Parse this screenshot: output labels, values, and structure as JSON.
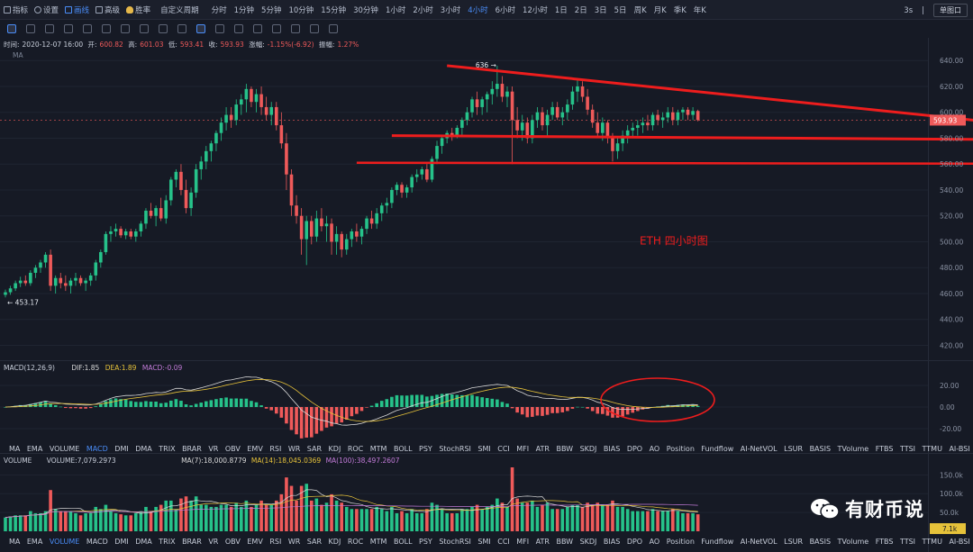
{
  "topbar": {
    "items": [
      {
        "name": "indicators-button",
        "label": "指标",
        "icon": "indicator-icon",
        "active": false
      },
      {
        "name": "settings-button",
        "label": "设置",
        "icon": "gear-icon",
        "active": false
      },
      {
        "name": "draw-button",
        "label": "画线",
        "icon": "pencil-icon",
        "active": true
      },
      {
        "name": "advanced-button",
        "label": "高级",
        "icon": "grid-icon",
        "active": false
      },
      {
        "name": "win-button",
        "label": "胜率",
        "icon": "bulb-icon",
        "active": false
      }
    ],
    "custom_period": "自定义周期",
    "periods": [
      "分时",
      "1分钟",
      "5分钟",
      "10分钟",
      "15分钟",
      "30分钟",
      "1小时",
      "2小时",
      "3小时",
      "4小时",
      "6小时",
      "12小时",
      "1日",
      "2日",
      "3日",
      "5日",
      "周K",
      "月K",
      "季K",
      "年K"
    ],
    "selected_period": "4小时",
    "refresh": "3s",
    "mode": "单图口"
  },
  "info": {
    "time_label": "时间:",
    "time": "2020-12-07 16:00",
    "open_label": "开:",
    "open": "600.82",
    "high_label": "高:",
    "high": "601.03",
    "low_label": "低:",
    "low": "593.41",
    "close_label": "收:",
    "close": "593.93",
    "chg_label": "涨幅:",
    "chg": "-1.15%(-6.92)",
    "amp_label": "振幅:",
    "amp": "1.27%"
  },
  "ma_label": "MA",
  "macd_header": {
    "name": "MACD(12,26,9)",
    "dif": "DIF:1.85",
    "dea": "DEA:1.89",
    "macd": "MACD:-0.09"
  },
  "vol_header": {
    "name": "VOLUME",
    "volume": "VOLUME:7,079.2973",
    "ma7": "MA(7):18,000.8779",
    "ma14": "MA(14):18,045.0369",
    "ma100": "MA(100):38,497.2607"
  },
  "indicator_tabs": [
    "MA",
    "EMA",
    "VOLUME",
    "MACD",
    "DMI",
    "DMA",
    "TRIX",
    "BRAR",
    "VR",
    "OBV",
    "EMV",
    "RSI",
    "WR",
    "SAR",
    "KDJ",
    "ROC",
    "MTM",
    "BOLL",
    "PSY",
    "StochRSI",
    "SMI",
    "CCI",
    "MFI",
    "ATR",
    "BBW",
    "SKDJ",
    "BIAS",
    "DPO",
    "AO",
    "Position",
    "Fundflow",
    "AI-NetVOL",
    "LSUR",
    "BASIS",
    "TVolume",
    "FTBS",
    "TTSI",
    "TTMU",
    "AI-BSI"
  ],
  "indicator_tabs_selected": "MACD",
  "indicator_tabs2_selected": "VOLUME",
  "colors": {
    "up": "#26c28a",
    "down": "#ef5a5a",
    "bg": "#161a25",
    "annot": "#ee1d1d",
    "accent": "#4a8df8"
  },
  "annotation": {
    "label": "ETH  四小时图",
    "high_label": "636",
    "low_label": "453.17"
  },
  "watermark": "有财币说",
  "chart_data": {
    "type": "candlestick",
    "title": "",
    "price_axis": {
      "ticks": [
        640,
        620,
        600,
        580,
        560,
        540,
        520,
        500,
        480,
        460,
        440,
        420
      ],
      "range": [
        412,
        645
      ],
      "current": "593.93"
    },
    "macd_axis": {
      "ticks": [
        "20.00",
        "0.00",
        "-20.00"
      ],
      "range": [
        -30,
        30
      ]
    },
    "volume_axis": {
      "ticks": [
        "150.0k",
        "100.0k",
        "50.0k"
      ],
      "current": "7.1k",
      "range": [
        0,
        170000
      ]
    },
    "series": [
      {
        "name": "OHLC",
        "values": [
          [
            459,
            463,
            457,
            461
          ],
          [
            461,
            466,
            459,
            464
          ],
          [
            464,
            470,
            462,
            468
          ],
          [
            468,
            473,
            465,
            470
          ],
          [
            470,
            474,
            466,
            468
          ],
          [
            468,
            478,
            466,
            476
          ],
          [
            476,
            482,
            472,
            480
          ],
          [
            480,
            486,
            476,
            484
          ],
          [
            484,
            492,
            480,
            490
          ],
          [
            490,
            494,
            462,
            466
          ],
          [
            466,
            474,
            460,
            472
          ],
          [
            472,
            476,
            464,
            468
          ],
          [
            468,
            474,
            462,
            466
          ],
          [
            466,
            472,
            460,
            470
          ],
          [
            470,
            476,
            466,
            472
          ],
          [
            472,
            474,
            466,
            468
          ],
          [
            468,
            472,
            462,
            470
          ],
          [
            470,
            476,
            466,
            474
          ],
          [
            474,
            486,
            470,
            484
          ],
          [
            484,
            494,
            480,
            492
          ],
          [
            492,
            508,
            490,
            506
          ],
          [
            506,
            512,
            500,
            508
          ],
          [
            508,
            514,
            504,
            510
          ],
          [
            510,
            512,
            503,
            505
          ],
          [
            505,
            510,
            502,
            508
          ],
          [
            508,
            510,
            502,
            504
          ],
          [
            504,
            510,
            500,
            508
          ],
          [
            508,
            516,
            504,
            514
          ],
          [
            514,
            526,
            510,
            524
          ],
          [
            524,
            530,
            518,
            520
          ],
          [
            520,
            528,
            512,
            526
          ],
          [
            526,
            534,
            516,
            518
          ],
          [
            518,
            536,
            514,
            532
          ],
          [
            532,
            550,
            528,
            548
          ],
          [
            548,
            556,
            542,
            554
          ],
          [
            554,
            560,
            536,
            540
          ],
          [
            540,
            548,
            522,
            526
          ],
          [
            526,
            542,
            520,
            538
          ],
          [
            538,
            560,
            534,
            556
          ],
          [
            556,
            566,
            548,
            562
          ],
          [
            562,
            574,
            556,
            570
          ],
          [
            570,
            578,
            562,
            576
          ],
          [
            576,
            586,
            570,
            584
          ],
          [
            584,
            596,
            578,
            592
          ],
          [
            592,
            604,
            586,
            598
          ],
          [
            598,
            604,
            588,
            594
          ],
          [
            594,
            610,
            590,
            606
          ],
          [
            606,
            614,
            598,
            610
          ],
          [
            610,
            622,
            600,
            618
          ],
          [
            618,
            620,
            604,
            608
          ],
          [
            608,
            618,
            600,
            614
          ],
          [
            614,
            620,
            598,
            604
          ],
          [
            604,
            612,
            594,
            598
          ],
          [
            598,
            608,
            590,
            604
          ],
          [
            604,
            608,
            586,
            590
          ],
          [
            590,
            600,
            572,
            576
          ],
          [
            576,
            584,
            540,
            552
          ],
          [
            552,
            556,
            520,
            528
          ],
          [
            528,
            536,
            514,
            520
          ],
          [
            520,
            526,
            490,
            502
          ],
          [
            502,
            520,
            482,
            516
          ],
          [
            516,
            520,
            498,
            504
          ],
          [
            504,
            524,
            500,
            518
          ],
          [
            518,
            526,
            508,
            512
          ],
          [
            512,
            520,
            500,
            514
          ],
          [
            514,
            518,
            490,
            500
          ],
          [
            500,
            512,
            490,
            506
          ],
          [
            506,
            508,
            488,
            494
          ],
          [
            494,
            506,
            490,
            502
          ],
          [
            502,
            510,
            496,
            508
          ],
          [
            508,
            514,
            500,
            504
          ],
          [
            504,
            512,
            498,
            510
          ],
          [
            510,
            520,
            506,
            518
          ],
          [
            518,
            524,
            510,
            514
          ],
          [
            514,
            526,
            510,
            522
          ],
          [
            522,
            530,
            516,
            528
          ],
          [
            528,
            534,
            522,
            530
          ],
          [
            530,
            542,
            526,
            540
          ],
          [
            540,
            546,
            536,
            544
          ],
          [
            544,
            546,
            534,
            538
          ],
          [
            538,
            544,
            534,
            542
          ],
          [
            542,
            552,
            538,
            550
          ],
          [
            550,
            556,
            546,
            552
          ],
          [
            552,
            558,
            548,
            556
          ],
          [
            556,
            560,
            546,
            548
          ],
          [
            548,
            566,
            546,
            564
          ],
          [
            564,
            578,
            560,
            574
          ],
          [
            574,
            582,
            568,
            580
          ],
          [
            580,
            586,
            576,
            584
          ],
          [
            584,
            588,
            578,
            582
          ],
          [
            582,
            590,
            580,
            588
          ],
          [
            588,
            596,
            582,
            594
          ],
          [
            594,
            604,
            590,
            600
          ],
          [
            600,
            612,
            596,
            610
          ],
          [
            610,
            616,
            598,
            604
          ],
          [
            604,
            612,
            598,
            610
          ],
          [
            610,
            616,
            600,
            614
          ],
          [
            614,
            624,
            606,
            618
          ],
          [
            618,
            636,
            612,
            622
          ],
          [
            622,
            628,
            608,
            612
          ],
          [
            612,
            620,
            604,
            616
          ],
          [
            616,
            620,
            560,
            594
          ],
          [
            594,
            604,
            580,
            586
          ],
          [
            586,
            598,
            578,
            592
          ],
          [
            592,
            596,
            576,
            580
          ],
          [
            580,
            598,
            576,
            594
          ],
          [
            594,
            604,
            588,
            600
          ],
          [
            600,
            604,
            586,
            590
          ],
          [
            590,
            602,
            582,
            598
          ],
          [
            598,
            608,
            594,
            604
          ],
          [
            604,
            608,
            594,
            596
          ],
          [
            596,
            604,
            590,
            600
          ],
          [
            600,
            610,
            594,
            606
          ],
          [
            606,
            620,
            602,
            616
          ],
          [
            616,
            626,
            608,
            620
          ],
          [
            620,
            624,
            608,
            612
          ],
          [
            612,
            618,
            598,
            602
          ],
          [
            602,
            606,
            588,
            592
          ],
          [
            592,
            600,
            580,
            584
          ],
          [
            584,
            596,
            578,
            592
          ],
          [
            592,
            594,
            576,
            580
          ],
          [
            580,
            584,
            562,
            570
          ],
          [
            570,
            580,
            564,
            576
          ],
          [
            576,
            586,
            570,
            582
          ],
          [
            582,
            590,
            576,
            586
          ],
          [
            586,
            592,
            580,
            588
          ],
          [
            588,
            594,
            582,
            590
          ],
          [
            590,
            596,
            584,
            592
          ],
          [
            592,
            598,
            586,
            590
          ],
          [
            590,
            600,
            586,
            598
          ],
          [
            598,
            602,
            590,
            594
          ],
          [
            594,
            600,
            588,
            596
          ],
          [
            596,
            604,
            592,
            600
          ],
          [
            600,
            604,
            590,
            594
          ],
          [
            594,
            602,
            590,
            600
          ],
          [
            600,
            604,
            594,
            602
          ],
          [
            602,
            604,
            594,
            598
          ],
          [
            598,
            604,
            594,
            601
          ],
          [
            601,
            602,
            593,
            594
          ]
        ]
      },
      {
        "name": "MACD",
        "values": []
      }
    ],
    "trendlines": [
      {
        "from": [
          88,
          636
        ],
        "to": [
          245,
          573
        ]
      },
      {
        "from": [
          77,
          582
        ],
        "to": [
          236,
          578
        ]
      },
      {
        "from": [
          70,
          561
        ],
        "to": [
          247,
          560
        ]
      }
    ]
  }
}
